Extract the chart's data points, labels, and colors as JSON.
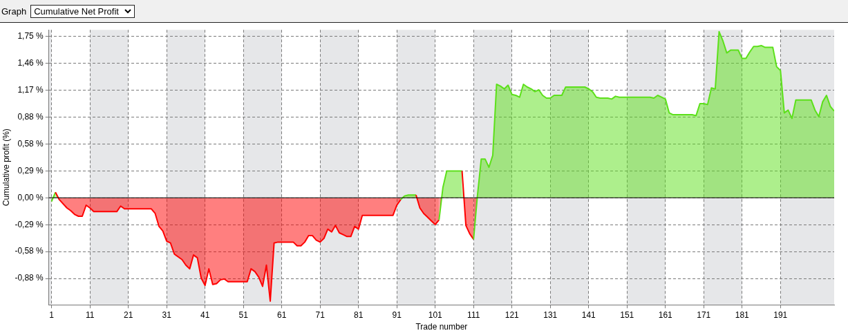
{
  "chart_data": {
    "type": "area",
    "title": "Cumulative Net Profit",
    "subtitle": "Graph",
    "xlabel": "Trade number",
    "ylabel": "Cumulative profit (%)",
    "series": [
      {
        "x": [
          1,
          2,
          3,
          5,
          6,
          7,
          8,
          9,
          10,
          11,
          12,
          18,
          19,
          20,
          27,
          28,
          29,
          30,
          31,
          32,
          33,
          34,
          35,
          36,
          37,
          38,
          39,
          40,
          41,
          42,
          43,
          44,
          45,
          46,
          47,
          52,
          53,
          54,
          55,
          56,
          57,
          58,
          59,
          60,
          64,
          65,
          66,
          67,
          68,
          69,
          70,
          71,
          72,
          73,
          74,
          75,
          76,
          77,
          78,
          79,
          80,
          81,
          82,
          90,
          91,
          92,
          93,
          94,
          96,
          97,
          98,
          99,
          100,
          101,
          102,
          103,
          104,
          108,
          109,
          110,
          111,
          112,
          113,
          114,
          115,
          116,
          117,
          118,
          119,
          120,
          121,
          122,
          123,
          124,
          125,
          126,
          127,
          128,
          129,
          130,
          131,
          132,
          134,
          135,
          140,
          141,
          142,
          143,
          144,
          146,
          147,
          148,
          149,
          157,
          158,
          159,
          160,
          161,
          162,
          163,
          168,
          169,
          170,
          171,
          172,
          173,
          174,
          175,
          176,
          177,
          178,
          180,
          181,
          182,
          183,
          184,
          185,
          186,
          187,
          189,
          190,
          191,
          192,
          193,
          194,
          195,
          199,
          200,
          201,
          202,
          203,
          204,
          205
        ],
        "values": [
          -0.04,
          0.06,
          -0.02,
          -0.11,
          -0.14,
          -0.18,
          -0.2,
          -0.2,
          -0.08,
          -0.11,
          -0.15,
          -0.15,
          -0.09,
          -0.12,
          -0.12,
          -0.17,
          -0.31,
          -0.36,
          -0.47,
          -0.49,
          -0.61,
          -0.64,
          -0.67,
          -0.73,
          -0.77,
          -0.62,
          -0.65,
          -0.87,
          -0.95,
          -0.77,
          -0.94,
          -0.93,
          -0.89,
          -0.88,
          -0.91,
          -0.91,
          -0.77,
          -0.8,
          -0.86,
          -0.96,
          -0.73,
          -1.12,
          -0.49,
          -0.48,
          -0.48,
          -0.52,
          -0.52,
          -0.48,
          -0.41,
          -0.41,
          -0.46,
          -0.48,
          -0.44,
          -0.34,
          -0.37,
          -0.3,
          -0.38,
          -0.4,
          -0.42,
          -0.42,
          -0.31,
          -0.34,
          -0.19,
          -0.19,
          -0.08,
          -0.02,
          0.02,
          0.03,
          0.03,
          -0.11,
          -0.17,
          -0.21,
          -0.25,
          -0.29,
          -0.24,
          0.11,
          0.29,
          0.29,
          -0.3,
          -0.39,
          -0.45,
          0.02,
          0.42,
          0.42,
          0.33,
          0.46,
          1.23,
          1.21,
          1.18,
          1.22,
          1.12,
          1.11,
          1.09,
          1.23,
          1.2,
          1.18,
          1.15,
          1.17,
          1.11,
          1.08,
          1.08,
          1.11,
          1.11,
          1.2,
          1.2,
          1.18,
          1.15,
          1.09,
          1.08,
          1.08,
          1.07,
          1.1,
          1.09,
          1.09,
          1.08,
          1.11,
          1.09,
          1.07,
          0.92,
          0.9,
          0.9,
          0.89,
          1.02,
          1.02,
          1.01,
          1.19,
          1.18,
          1.8,
          1.7,
          1.57,
          1.6,
          1.6,
          1.51,
          1.51,
          1.58,
          1.64,
          1.64,
          1.65,
          1.63,
          1.63,
          1.42,
          1.38,
          0.92,
          0.95,
          0.86,
          1.06,
          1.06,
          0.95,
          0.88,
          1.04,
          1.11,
          0.99,
          0.94
        ],
        "colors": [
          "#ff0000",
          "#5ce01a",
          "#ff0000",
          "#ff0000",
          "#ff0000",
          "#ff0000",
          "#ff0000",
          "#ff0000",
          "#ff0000",
          "#ff0000",
          "#ff0000",
          "#ff0000",
          "#ff0000",
          "#ff0000",
          "#ff0000",
          "#ff0000",
          "#ff0000",
          "#ff0000",
          "#ff0000",
          "#ff0000",
          "#ff0000",
          "#ff0000",
          "#ff0000",
          "#ff0000",
          "#ff0000",
          "#ff0000",
          "#ff0000",
          "#ff0000",
          "#ff0000",
          "#ff0000",
          "#ff0000",
          "#ff0000",
          "#ff0000",
          "#ff0000",
          "#ff0000",
          "#ff0000",
          "#ff0000",
          "#ff0000",
          "#ff0000",
          "#ff0000",
          "#ff0000",
          "#ff0000",
          "#ff0000",
          "#ff0000",
          "#ff0000",
          "#ff0000",
          "#ff0000",
          "#ff0000",
          "#ff0000",
          "#ff0000",
          "#ff0000",
          "#ff0000",
          "#ff0000",
          "#ff0000",
          "#ff0000",
          "#ff0000",
          "#ff0000",
          "#ff0000",
          "#ff0000",
          "#ff0000",
          "#ff0000",
          "#ff0000",
          "#ff0000",
          "#ff0000",
          "#ff0000",
          "#ff0000",
          "#5ce01a",
          "#5ce01a",
          "#5ce01a",
          "#ff0000",
          "#ff0000",
          "#ff0000",
          "#ff0000",
          "#ff0000",
          "#ff0000",
          "#5ce01a",
          "#5ce01a",
          "#5ce01a",
          "#ff0000",
          "#ff0000",
          "#ff0000",
          "#5ce01a",
          "#5ce01a",
          "#5ce01a",
          "#5ce01a",
          "#5ce01a",
          "#5ce01a",
          "#5ce01a",
          "#5ce01a",
          "#5ce01a",
          "#5ce01a",
          "#5ce01a",
          "#5ce01a",
          "#5ce01a",
          "#5ce01a",
          "#5ce01a",
          "#5ce01a",
          "#5ce01a",
          "#5ce01a",
          "#5ce01a",
          "#5ce01a",
          "#5ce01a",
          "#5ce01a",
          "#5ce01a",
          "#5ce01a",
          "#5ce01a",
          "#5ce01a",
          "#5ce01a",
          "#5ce01a",
          "#5ce01a",
          "#5ce01a",
          "#5ce01a",
          "#5ce01a",
          "#5ce01a",
          "#5ce01a",
          "#5ce01a",
          "#5ce01a",
          "#5ce01a",
          "#5ce01a",
          "#5ce01a",
          "#5ce01a",
          "#5ce01a",
          "#5ce01a",
          "#5ce01a",
          "#5ce01a",
          "#5ce01a",
          "#5ce01a",
          "#5ce01a",
          "#5ce01a",
          "#5ce01a",
          "#5ce01a",
          "#5ce01a",
          "#5ce01a",
          "#5ce01a",
          "#5ce01a",
          "#5ce01a",
          "#5ce01a",
          "#5ce01a",
          "#5ce01a",
          "#5ce01a",
          "#5ce01a",
          "#5ce01a",
          "#5ce01a",
          "#5ce01a",
          "#5ce01a",
          "#5ce01a",
          "#5ce01a",
          "#5ce01a",
          "#5ce01a",
          "#5ce01a",
          "#5ce01a",
          "#5ce01a",
          "#5ce01a"
        ]
      }
    ],
    "xlim": [
      0.3,
      205
    ],
    "xticks": [
      1,
      11,
      21,
      31,
      41,
      51,
      61,
      71,
      81,
      91,
      101,
      111,
      121,
      131,
      141,
      151,
      161,
      171,
      181,
      191
    ],
    "ylim": [
      -1.16,
      1.82
    ],
    "yticks": [
      {
        "value": -0.875,
        "label": "-0,88 %"
      },
      {
        "value": -0.5833,
        "label": "-0,58 %"
      },
      {
        "value": -0.2917,
        "label": "-0,29 %"
      },
      {
        "value": 0,
        "label": "0,00 %"
      },
      {
        "value": 0.2917,
        "label": "0,29 %"
      },
      {
        "value": 0.5833,
        "label": "0,58 %"
      },
      {
        "value": 0.875,
        "label": "0,88 %"
      },
      {
        "value": 1.1667,
        "label": "1,17 %"
      },
      {
        "value": 1.4583,
        "label": "1,46 %"
      },
      {
        "value": 1.75,
        "label": "1,75 %"
      }
    ],
    "grid": true,
    "line_style": "solid",
    "legend": false,
    "ref_lines": [
      {
        "axis": "y",
        "value": 0,
        "color": "#000000"
      }
    ],
    "bands": [
      {
        "axis": "x",
        "from": 0.3,
        "to": 1,
        "color": "#e6e7e9"
      },
      {
        "axis": "x",
        "from": 11,
        "to": 21,
        "color": "#e6e7e9"
      },
      {
        "axis": "x",
        "from": 31,
        "to": 41,
        "color": "#e6e7e9"
      },
      {
        "axis": "x",
        "from": 51,
        "to": 61,
        "color": "#e6e7e9"
      },
      {
        "axis": "x",
        "from": 71,
        "to": 81,
        "color": "#e6e7e9"
      },
      {
        "axis": "x",
        "from": 91,
        "to": 101,
        "color": "#e6e7e9"
      },
      {
        "axis": "x",
        "from": 111,
        "to": 121,
        "color": "#e6e7e9"
      },
      {
        "axis": "x",
        "from": 131,
        "to": 141,
        "color": "#e6e7e9"
      },
      {
        "axis": "x",
        "from": 151,
        "to": 161,
        "color": "#e6e7e9"
      },
      {
        "axis": "x",
        "from": 171,
        "to": 181,
        "color": "#e6e7e9"
      },
      {
        "axis": "x",
        "from": 191,
        "to": 205,
        "color": "#e6e7e9"
      }
    ]
  }
}
